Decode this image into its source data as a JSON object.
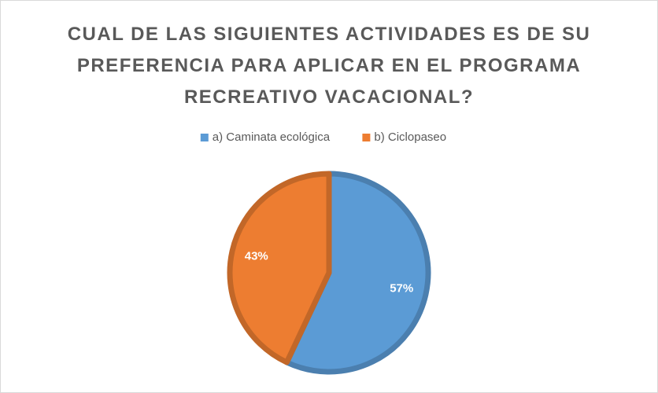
{
  "chart_data": {
    "type": "pie",
    "title": "CUAL DE LAS SIGUIENTES ACTIVIDADES ES DE SU PREFERENCIA PARA APLICAR EN EL PROGRAMA RECREATIVO VACACIONAL?",
    "categories": [
      "a) Caminata ecológica",
      "b) Ciclopaseo"
    ],
    "values": [
      57,
      43
    ],
    "value_labels": [
      "57%",
      "43%"
    ],
    "colors": [
      "#5b9bd5",
      "#ed7d31"
    ],
    "legend": "top"
  }
}
